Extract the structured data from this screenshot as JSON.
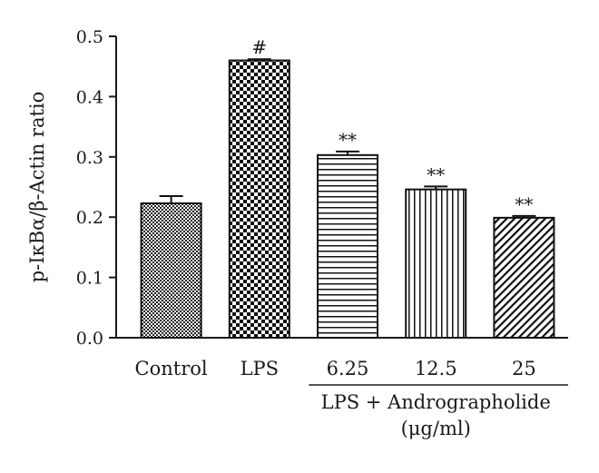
{
  "chart_data": {
    "type": "bar",
    "ylabel": "p-IκBα/β-Actin ratio",
    "ylim": [
      0,
      0.5
    ],
    "yticks": [
      "0.0",
      "0.1",
      "0.2",
      "0.3",
      "0.4",
      "0.5"
    ],
    "categories": [
      "Control",
      "LPS",
      "6.25",
      "12.5",
      "25"
    ],
    "values": [
      0.223,
      0.46,
      0.303,
      0.246,
      0.199
    ],
    "errors": [
      0.012,
      0.002,
      0.006,
      0.005,
      0.003
    ],
    "markers": [
      "",
      "#",
      "**",
      "**",
      "**"
    ],
    "patterns": [
      "dense-checker",
      "checker",
      "horizontal-lines",
      "vertical-lines",
      "diagonal-lines"
    ],
    "group_label": {
      "line1": "LPS + Andrographolide",
      "line2": "(μg/ml)",
      "spans": [
        2,
        4
      ]
    },
    "grid": false
  }
}
